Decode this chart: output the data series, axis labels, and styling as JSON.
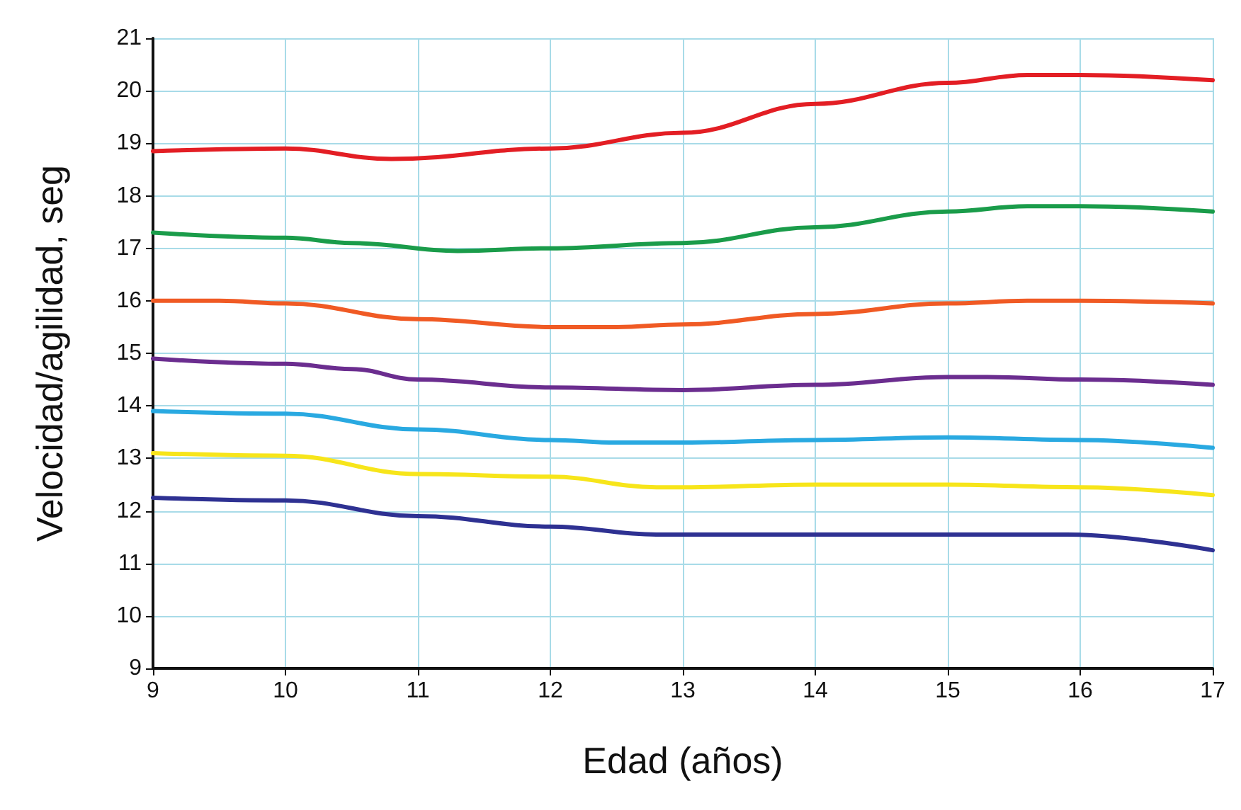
{
  "chart_data": {
    "type": "line",
    "xlabel": "Edad (años)",
    "ylabel": "Velocidad/agilidad, seg",
    "xlim": [
      9,
      17
    ],
    "xticks": [
      9,
      10,
      11,
      12,
      13,
      14,
      15,
      16,
      17
    ],
    "ylim": [
      9,
      21
    ],
    "yticks": [
      9,
      10,
      11,
      12,
      13,
      14,
      15,
      16,
      17,
      18,
      19,
      20,
      21
    ],
    "grid": true,
    "marker": "none",
    "line_style": "solid",
    "series": [
      {
        "color": "#e31e24",
        "x": [
          9,
          10,
          10.8,
          12,
          13,
          14,
          15,
          15.6,
          16,
          17
        ],
        "values": [
          18.85,
          18.9,
          18.7,
          18.9,
          19.2,
          19.75,
          20.15,
          20.3,
          20.3,
          20.2
        ]
      },
      {
        "color": "#1a9c4a",
        "x": [
          9,
          10,
          10.5,
          11.3,
          12,
          13,
          14,
          15,
          15.6,
          16,
          17
        ],
        "values": [
          17.3,
          17.2,
          17.1,
          16.95,
          17.0,
          17.1,
          17.4,
          17.7,
          17.8,
          17.8,
          17.7
        ]
      },
      {
        "color": "#f05a24",
        "x": [
          9,
          9.5,
          10,
          11,
          12,
          12.5,
          13,
          14,
          15,
          15.6,
          16,
          17
        ],
        "values": [
          16.0,
          16.0,
          15.95,
          15.65,
          15.5,
          15.5,
          15.55,
          15.75,
          15.95,
          16.0,
          16.0,
          15.95
        ]
      },
      {
        "color": "#6b2d8f",
        "x": [
          9,
          10,
          10.5,
          11,
          12,
          13,
          14,
          15,
          15.3,
          16,
          17
        ],
        "values": [
          14.9,
          14.8,
          14.7,
          14.5,
          14.35,
          14.3,
          14.4,
          14.55,
          14.55,
          14.5,
          14.4
        ]
      },
      {
        "color": "#29a9e1",
        "x": [
          9,
          10,
          11,
          12,
          12.5,
          13,
          14,
          15,
          16,
          17
        ],
        "values": [
          13.9,
          13.85,
          13.55,
          13.35,
          13.3,
          13.3,
          13.35,
          13.4,
          13.35,
          13.2
        ]
      },
      {
        "color": "#f7e51a",
        "x": [
          9,
          10,
          11,
          12,
          12.8,
          13,
          14,
          15,
          16,
          17
        ],
        "values": [
          13.1,
          13.05,
          12.7,
          12.65,
          12.45,
          12.45,
          12.5,
          12.5,
          12.45,
          12.3
        ]
      },
      {
        "color": "#2e3192",
        "x": [
          9,
          10,
          11,
          12,
          12.8,
          13,
          14,
          15,
          15.9,
          17
        ],
        "values": [
          12.25,
          12.2,
          11.9,
          11.7,
          11.55,
          11.55,
          11.55,
          11.55,
          11.55,
          11.25
        ]
      }
    ]
  }
}
